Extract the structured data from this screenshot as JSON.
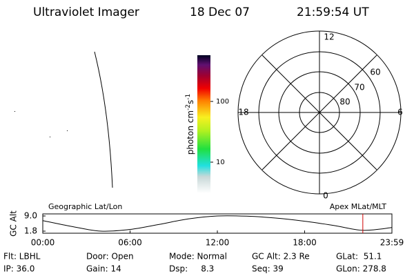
{
  "header": {
    "instrument": "Ultraviolet Imager",
    "date": "18 Dec 07",
    "time": "21:59:54 UT"
  },
  "colorbar": {
    "label": "photon cm",
    "exp1": "-2",
    "unit2": "s",
    "exp2": "-1",
    "ticks": [
      "100",
      "10"
    ]
  },
  "polar": {
    "mlt_labels": [
      "12",
      "6",
      "0",
      "18"
    ],
    "ring_labels": [
      "60",
      "70",
      "80"
    ]
  },
  "orbit": {
    "left_title": "Geographic Lat/Lon",
    "right_title": "Apex MLat/MLT",
    "ylabel": "GC Alt",
    "ylim": [
      1.8,
      9.0
    ],
    "yticks": [
      {
        "value": 9.0,
        "label": "9.0"
      },
      1.8
    ],
    "xlim": [
      0,
      24
    ],
    "xticks": [
      {
        "value": 0,
        "label": "00:00"
      },
      {
        "value": 6,
        "label": "06:00"
      },
      {
        "value": 12,
        "label": "12:00"
      },
      {
        "value": 18,
        "label": "18:00"
      },
      {
        "value": 24,
        "label": "23:59"
      }
    ],
    "x": [
      0,
      2,
      4,
      6,
      8,
      10,
      12,
      14,
      16,
      18,
      20,
      22,
      24
    ],
    "altitude": [
      6.8,
      4.0,
      1.8,
      2.6,
      5.0,
      7.6,
      9.0,
      8.9,
      8.0,
      6.5,
      4.5,
      2.2,
      3.5
    ],
    "now": 22.0
  },
  "footer": [
    [
      "Flt: LBHL",
      "Door: Open",
      "Mode: Normal",
      "GC Alt: 2.3 Re",
      "GLat:  51.1"
    ],
    [
      "IP: 36.0",
      "Gain: 14",
      "Dsp:     8.3",
      "Seq: 39",
      "GLon: 278.8"
    ]
  ]
}
